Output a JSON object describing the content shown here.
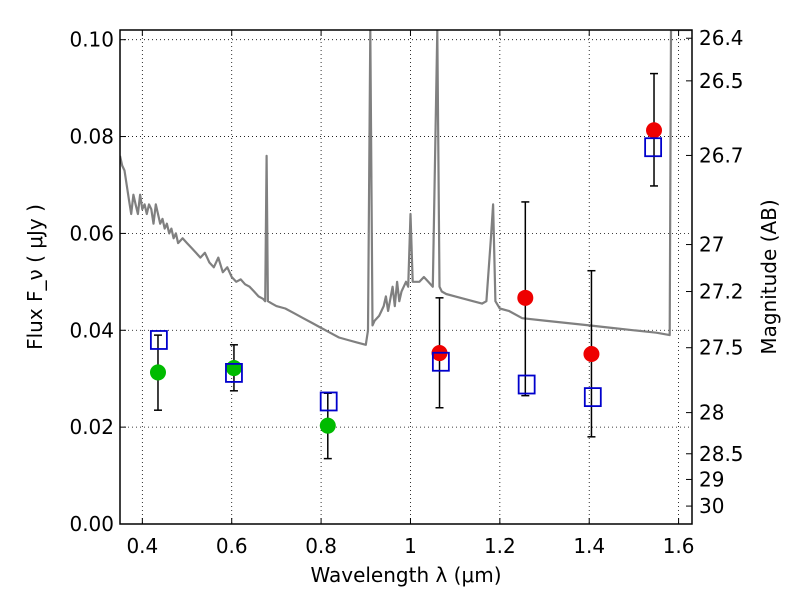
{
  "chart_data": {
    "type": "scatter",
    "xlabel": "Wavelength  λ (μm)",
    "ylabel": "Flux  F_ν  ( μJy )",
    "ylabel_right": "Magnitude (AB)",
    "xlim": [
      0.35,
      1.63
    ],
    "ylim": [
      0.0,
      0.102
    ],
    "grid": true,
    "x_ticks": [
      0.4,
      0.6,
      0.8,
      1.0,
      1.2,
      1.4,
      1.6
    ],
    "x_tick_labels": [
      "0.4",
      "0.6",
      "0.8",
      "1",
      "1.2",
      "1.4",
      "1.6"
    ],
    "y_ticks": [
      0.0,
      0.02,
      0.04,
      0.06,
      0.08,
      0.1
    ],
    "y_tick_labels": [
      "0.00",
      "0.02",
      "0.04",
      "0.06",
      "0.08",
      "0.10"
    ],
    "right_ticks": [
      {
        "label": "26.4",
        "flux": 0.1003
      },
      {
        "label": "26.5",
        "flux": 0.0915
      },
      {
        "label": "26.7",
        "flux": 0.0761
      },
      {
        "label": "27",
        "flux": 0.0577
      },
      {
        "label": "27.2",
        "flux": 0.048
      },
      {
        "label": "27.5",
        "flux": 0.0364
      },
      {
        "label": "28",
        "flux": 0.023
      },
      {
        "label": "28.5",
        "flux": 0.0145
      },
      {
        "label": "29",
        "flux": 0.0092
      },
      {
        "label": "30",
        "flux": 0.0037
      }
    ],
    "series": [
      {
        "name": "model spectrum",
        "kind": "line",
        "color": "#808080",
        "points": [
          [
            0.35,
            0.076
          ],
          [
            0.355,
            0.074
          ],
          [
            0.36,
            0.073
          ],
          [
            0.365,
            0.07
          ],
          [
            0.37,
            0.067
          ],
          [
            0.375,
            0.064
          ],
          [
            0.38,
            0.068
          ],
          [
            0.385,
            0.066
          ],
          [
            0.39,
            0.064
          ],
          [
            0.395,
            0.068
          ],
          [
            0.4,
            0.065
          ],
          [
            0.405,
            0.066
          ],
          [
            0.41,
            0.064
          ],
          [
            0.415,
            0.066
          ],
          [
            0.42,
            0.065
          ],
          [
            0.425,
            0.062
          ],
          [
            0.43,
            0.066
          ],
          [
            0.435,
            0.064
          ],
          [
            0.44,
            0.062
          ],
          [
            0.445,
            0.063
          ],
          [
            0.45,
            0.061
          ],
          [
            0.455,
            0.062
          ],
          [
            0.46,
            0.06
          ],
          [
            0.465,
            0.061
          ],
          [
            0.47,
            0.059
          ],
          [
            0.475,
            0.06
          ],
          [
            0.48,
            0.058
          ],
          [
            0.49,
            0.059
          ],
          [
            0.5,
            0.058
          ],
          [
            0.51,
            0.057
          ],
          [
            0.52,
            0.056
          ],
          [
            0.53,
            0.055
          ],
          [
            0.54,
            0.056
          ],
          [
            0.55,
            0.054
          ],
          [
            0.56,
            0.053
          ],
          [
            0.57,
            0.055
          ],
          [
            0.58,
            0.052
          ],
          [
            0.59,
            0.053
          ],
          [
            0.6,
            0.051
          ],
          [
            0.61,
            0.05
          ],
          [
            0.62,
            0.0505
          ],
          [
            0.63,
            0.0495
          ],
          [
            0.64,
            0.049
          ],
          [
            0.65,
            0.048
          ],
          [
            0.66,
            0.047
          ],
          [
            0.67,
            0.0465
          ],
          [
            0.675,
            0.046
          ],
          [
            0.678,
            0.076
          ],
          [
            0.681,
            0.046
          ],
          [
            0.69,
            0.0455
          ],
          [
            0.7,
            0.045
          ],
          [
            0.72,
            0.0445
          ],
          [
            0.74,
            0.0435
          ],
          [
            0.76,
            0.0425
          ],
          [
            0.78,
            0.0415
          ],
          [
            0.8,
            0.0405
          ],
          [
            0.82,
            0.0395
          ],
          [
            0.84,
            0.0385
          ],
          [
            0.86,
            0.038
          ],
          [
            0.88,
            0.0375
          ],
          [
            0.9,
            0.037
          ],
          [
            0.905,
            0.04
          ],
          [
            0.91,
            0.102
          ],
          [
            0.915,
            0.041
          ],
          [
            0.92,
            0.042
          ],
          [
            0.93,
            0.043
          ],
          [
            0.94,
            0.045
          ],
          [
            0.945,
            0.047
          ],
          [
            0.95,
            0.044
          ],
          [
            0.96,
            0.049
          ],
          [
            0.965,
            0.045
          ],
          [
            0.97,
            0.05
          ],
          [
            0.975,
            0.046
          ],
          [
            0.98,
            0.048
          ],
          [
            0.99,
            0.05
          ],
          [
            0.995,
            0.049
          ],
          [
            1.0,
            0.064
          ],
          [
            1.005,
            0.05
          ],
          [
            1.01,
            0.05
          ],
          [
            1.02,
            0.05
          ],
          [
            1.03,
            0.051
          ],
          [
            1.04,
            0.05
          ],
          [
            1.05,
            0.049
          ],
          [
            1.06,
            0.102
          ],
          [
            1.065,
            0.049
          ],
          [
            1.07,
            0.048
          ],
          [
            1.08,
            0.0475
          ],
          [
            1.1,
            0.047
          ],
          [
            1.12,
            0.0465
          ],
          [
            1.14,
            0.046
          ],
          [
            1.16,
            0.0455
          ],
          [
            1.17,
            0.046
          ],
          [
            1.18,
            0.059
          ],
          [
            1.185,
            0.066
          ],
          [
            1.19,
            0.046
          ],
          [
            1.2,
            0.0445
          ],
          [
            1.22,
            0.044
          ],
          [
            1.25,
            0.0425
          ],
          [
            1.3,
            0.042
          ],
          [
            1.35,
            0.0415
          ],
          [
            1.4,
            0.041
          ],
          [
            1.45,
            0.0405
          ],
          [
            1.5,
            0.04
          ],
          [
            1.55,
            0.0395
          ],
          [
            1.58,
            0.039
          ],
          [
            1.583,
            0.102
          ],
          [
            1.63,
            0.102
          ]
        ]
      },
      {
        "name": "green observed",
        "kind": "circle",
        "color": "#00bb00",
        "points": [
          {
            "x": 0.435,
            "y": 0.0313,
            "err_lo": 0.0235,
            "err_hi": 0.039
          },
          {
            "x": 0.605,
            "y": 0.0322,
            "err_lo": 0.0275,
            "err_hi": 0.037
          },
          {
            "x": 0.815,
            "y": 0.0203,
            "err_lo": 0.0135,
            "err_hi": 0.027
          }
        ]
      },
      {
        "name": "red observed",
        "kind": "circle",
        "color": "#ee0000",
        "points": [
          {
            "x": 1.065,
            "y": 0.0353,
            "err_lo": 0.024,
            "err_hi": 0.0467
          },
          {
            "x": 1.257,
            "y": 0.0467,
            "err_lo": 0.0265,
            "err_hi": 0.0665
          },
          {
            "x": 1.405,
            "y": 0.0351,
            "err_lo": 0.018,
            "err_hi": 0.0523
          },
          {
            "x": 1.545,
            "y": 0.0813,
            "err_lo": 0.0698,
            "err_hi": 0.093
          }
        ]
      },
      {
        "name": "model photometry",
        "kind": "open-square",
        "color": "#0000cc",
        "points": [
          {
            "x": 0.437,
            "y": 0.038
          },
          {
            "x": 0.605,
            "y": 0.0312
          },
          {
            "x": 0.817,
            "y": 0.0253
          },
          {
            "x": 1.068,
            "y": 0.0335
          },
          {
            "x": 1.26,
            "y": 0.0288
          },
          {
            "x": 1.408,
            "y": 0.0262
          },
          {
            "x": 1.543,
            "y": 0.0778
          }
        ]
      }
    ]
  }
}
